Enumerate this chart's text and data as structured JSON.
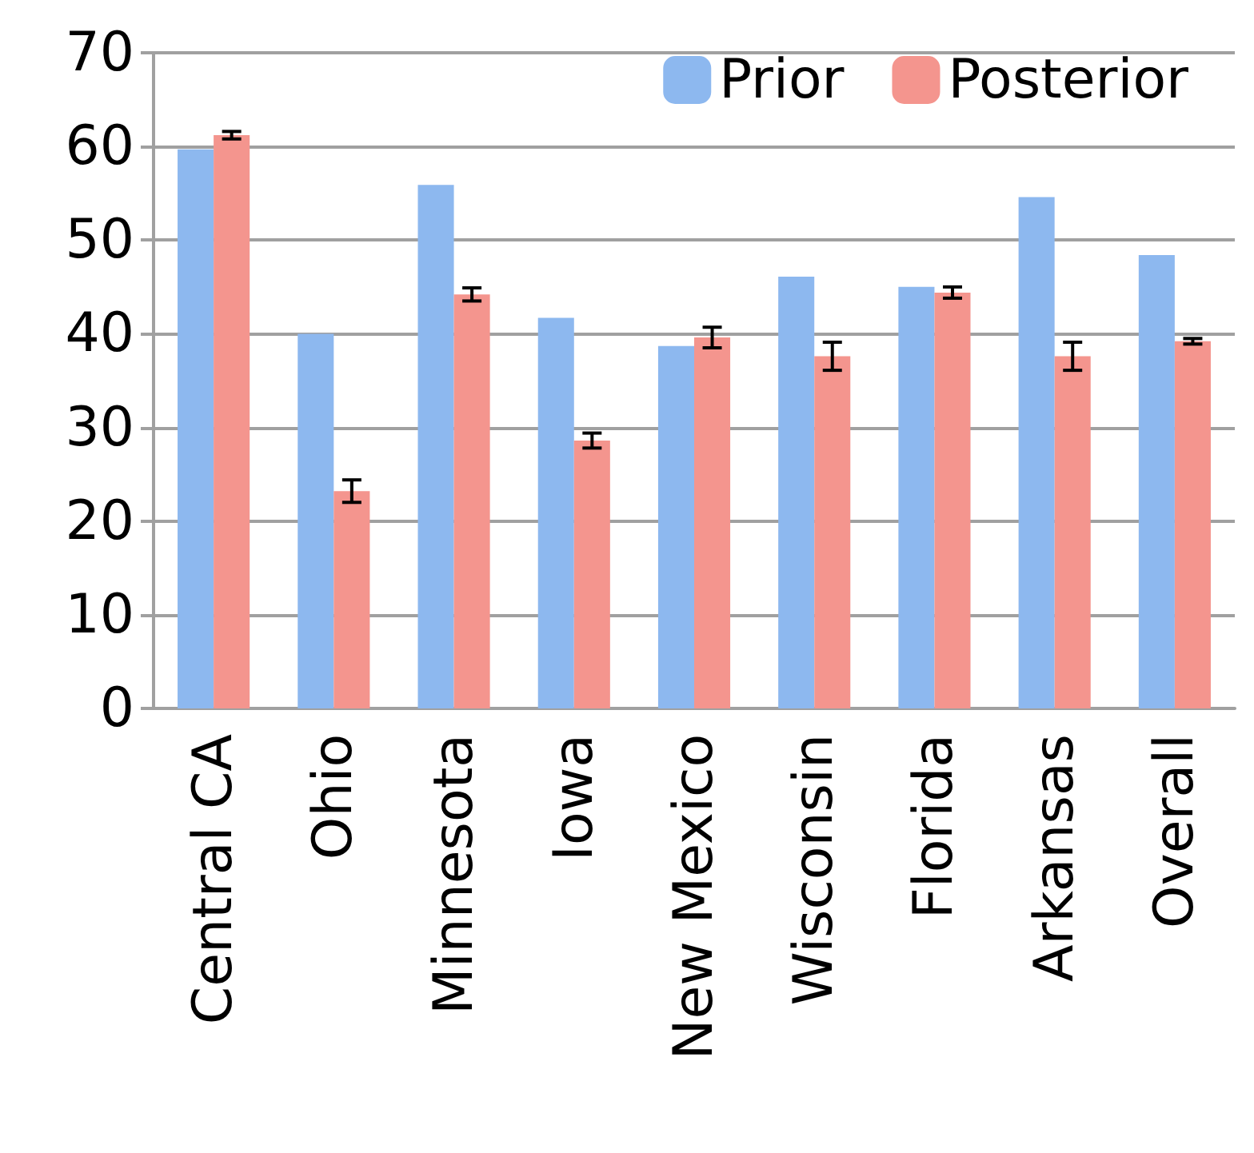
{
  "chart_data": {
    "type": "bar",
    "categories": [
      "Central CA",
      "Ohio",
      "Minnesota",
      "Iowa",
      "New Mexico",
      "Wisconsin",
      "Florida",
      "Arkansas",
      "Overall"
    ],
    "series": [
      {
        "name": "Prior",
        "color": "#8db8ef",
        "values": [
          59.7,
          40,
          55.9,
          41.7,
          38.7,
          46.1,
          45.0,
          54.6,
          48.4
        ]
      },
      {
        "name": "Posterior",
        "color": "#f4958e",
        "values": [
          61.2,
          23.2,
          44.2,
          28.6,
          39.6,
          37.6,
          44.4,
          37.6,
          39.2
        ],
        "errors": [
          0.4,
          1.2,
          0.7,
          0.8,
          1.1,
          1.5,
          0.6,
          1.5,
          0.3
        ]
      }
    ],
    "ylim": [
      0,
      70
    ],
    "yticks": [
      0,
      10,
      20,
      30,
      40,
      50,
      60,
      70
    ],
    "grid": "y",
    "legend": "top right"
  }
}
